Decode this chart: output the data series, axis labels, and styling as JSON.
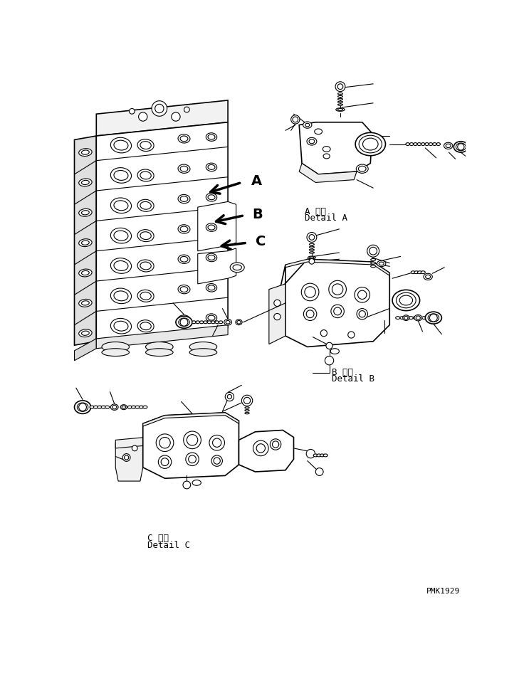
{
  "bg_color": "#ffffff",
  "line_color": "#000000",
  "label_A_line1": "A 詳細",
  "label_A_line2": "Detail A",
  "label_B_line1": "B 詳細",
  "label_B_line2": "Detail B",
  "label_C_line1": "C 詳細",
  "label_C_line2": "Detail C",
  "watermark": "PMK1929",
  "figsize": [
    7.29,
    9.5
  ],
  "dpi": 100
}
